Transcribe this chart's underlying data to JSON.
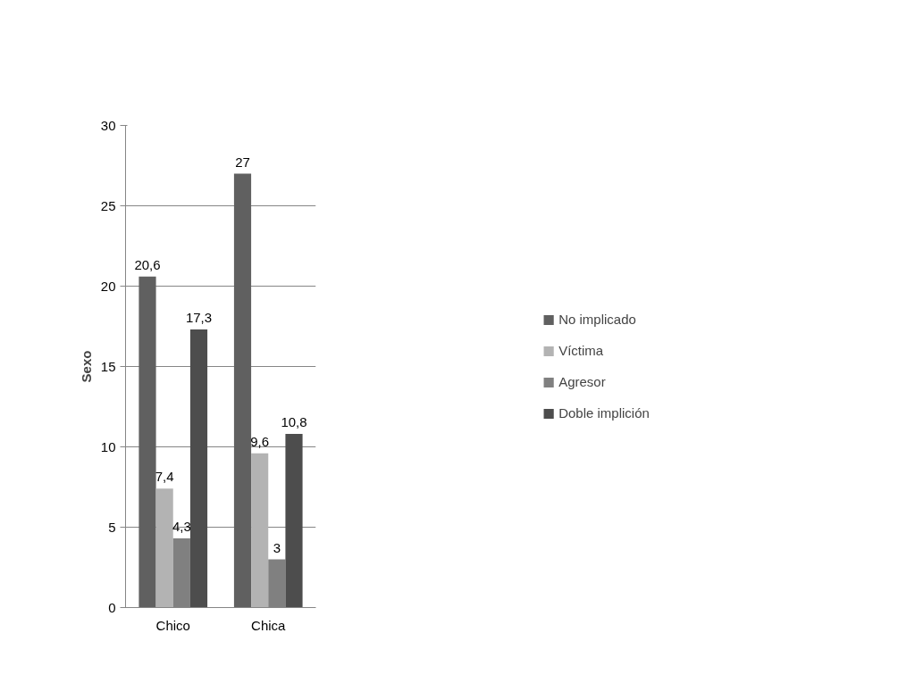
{
  "chart_data": {
    "type": "bar",
    "ylabel": "Sexo",
    "categories": [
      "Chico",
      "Chica"
    ],
    "series": [
      {
        "name": "No implicado",
        "color": "#606060",
        "values": [
          20.6,
          27
        ],
        "value_labels": [
          "20,6",
          "27"
        ]
      },
      {
        "name": "Víctima",
        "color": "#b3b3b3",
        "values": [
          7.4,
          9.6
        ],
        "value_labels": [
          "7,4",
          "9,6"
        ]
      },
      {
        "name": "Agresor",
        "color": "#808080",
        "values": [
          4.3,
          3
        ],
        "value_labels": [
          "4,3",
          "3"
        ]
      },
      {
        "name": "Doble implición",
        "color": "#4d4d4d",
        "values": [
          17.3,
          10.8
        ],
        "value_labels": [
          "17,3",
          "10,8"
        ]
      }
    ],
    "ylim": [
      0,
      30
    ],
    "yticks": [
      0,
      5,
      10,
      15,
      20,
      25,
      30
    ],
    "grid": "y",
    "legend": "right"
  }
}
